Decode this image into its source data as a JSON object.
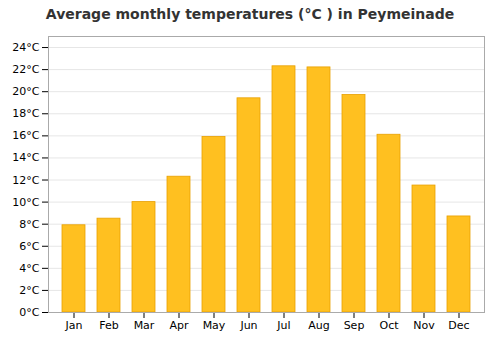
{
  "chart_data": {
    "type": "bar",
    "title": "Average monthly temperatures (°C ) in Peymeinade",
    "categories": [
      "Jan",
      "Feb",
      "Mar",
      "Apr",
      "May",
      "Jun",
      "Jul",
      "Aug",
      "Sep",
      "Oct",
      "Nov",
      "Dec"
    ],
    "values": [
      7.9,
      8.5,
      10.0,
      12.3,
      15.9,
      19.4,
      22.3,
      22.2,
      19.7,
      16.1,
      11.5,
      8.7
    ],
    "color": "#FFC020",
    "ylim": [
      0,
      25
    ],
    "yticks": [
      {
        "value": 0,
        "label": "0°C"
      },
      {
        "value": 2,
        "label": "2°C"
      },
      {
        "value": 4,
        "label": "4°C"
      },
      {
        "value": 6,
        "label": "6°C"
      },
      {
        "value": 8,
        "label": "8°C"
      },
      {
        "value": 10,
        "label": "10°C"
      },
      {
        "value": 12,
        "label": "12°C"
      },
      {
        "value": 14,
        "label": "14°C"
      },
      {
        "value": 16,
        "label": "16°C"
      },
      {
        "value": 18,
        "label": "18°C"
      },
      {
        "value": 20,
        "label": "20°C"
      },
      {
        "value": 22,
        "label": "22°C"
      },
      {
        "value": 24,
        "label": "24°C"
      }
    ],
    "grid": true
  }
}
